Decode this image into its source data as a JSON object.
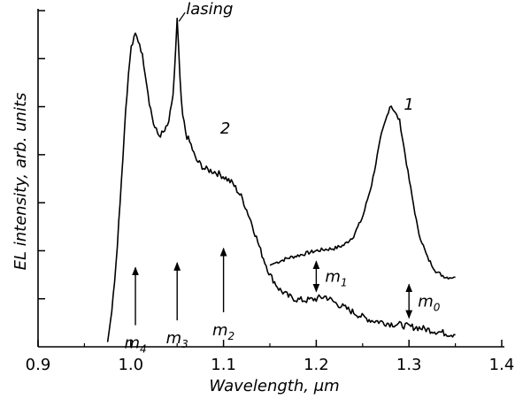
{
  "chart_data": {
    "type": "line",
    "title": "",
    "xlabel": "Wavelength, μm",
    "ylabel": "EL intensity, arb. units",
    "xlim": [
      0.9,
      1.4
    ],
    "ylim": [
      0,
      7
    ],
    "x_ticks": [
      "0.9",
      "1.0",
      "1.1",
      "1.2",
      "1.3",
      "1.4"
    ],
    "y_ticks_labeled": false,
    "grid": false,
    "series": [
      {
        "name": "1",
        "x": [
          1.15,
          1.16,
          1.17,
          1.18,
          1.19,
          1.2,
          1.21,
          1.22,
          1.23,
          1.24,
          1.25,
          1.26,
          1.27,
          1.28,
          1.29,
          1.3,
          1.31,
          1.32,
          1.33,
          1.34,
          1.35
        ],
        "y": [
          1.7,
          1.78,
          1.85,
          1.9,
          1.95,
          2.0,
          2.03,
          2.05,
          2.12,
          2.3,
          2.7,
          3.4,
          4.4,
          5.05,
          4.7,
          3.5,
          2.4,
          1.85,
          1.55,
          1.45,
          1.45
        ],
        "noise": 0.04
      },
      {
        "name": "2",
        "x": [
          0.975,
          0.98,
          0.985,
          0.99,
          0.995,
          1.0,
          1.005,
          1.01,
          1.015,
          1.02,
          1.025,
          1.03,
          1.035,
          1.04,
          1.045,
          1.048,
          1.05,
          1.052,
          1.055,
          1.06,
          1.065,
          1.07,
          1.08,
          1.09,
          1.1,
          1.11,
          1.12,
          1.13,
          1.14,
          1.15,
          1.16,
          1.17,
          1.18,
          1.19,
          1.2,
          1.21,
          1.22,
          1.23,
          1.24,
          1.25,
          1.26,
          1.27,
          1.28,
          1.29,
          1.3,
          1.31,
          1.32,
          1.33,
          1.34,
          1.35
        ],
        "y": [
          0.1,
          0.8,
          2.0,
          3.5,
          5.1,
          6.2,
          6.5,
          6.3,
          5.8,
          5.1,
          4.6,
          4.4,
          4.45,
          4.6,
          5.1,
          6.0,
          6.8,
          6.0,
          4.9,
          4.4,
          4.2,
          3.9,
          3.7,
          3.65,
          3.55,
          3.4,
          3.1,
          2.6,
          2.0,
          1.5,
          1.2,
          1.05,
          0.98,
          0.97,
          1.0,
          1.05,
          0.92,
          0.82,
          0.72,
          0.62,
          0.55,
          0.52,
          0.48,
          0.46,
          0.42,
          0.4,
          0.36,
          0.32,
          0.28,
          0.25
        ],
        "noise": 0.07
      }
    ],
    "annotations": [
      {
        "text": "lasing",
        "x": 1.05,
        "y": 6.85
      },
      {
        "text": "1",
        "x": 1.283,
        "y": 5.05
      },
      {
        "text": "2",
        "x": 1.085,
        "y": 4.55
      }
    ],
    "mode_markers": [
      {
        "label": "m",
        "sub": "4",
        "x": 1.005,
        "y_from": 0.45,
        "y_to": 1.65,
        "kind": "up"
      },
      {
        "label": "m",
        "sub": "3",
        "x": 1.05,
        "y_from": 0.55,
        "y_to": 1.75,
        "kind": "up"
      },
      {
        "label": "m",
        "sub": "2",
        "x": 1.1,
        "y_from": 0.72,
        "y_to": 2.05,
        "kind": "up"
      },
      {
        "label": "m",
        "sub": "1",
        "x": 1.2,
        "y_from": 1.15,
        "y_to": 1.78,
        "kind": "double"
      },
      {
        "label": "m",
        "sub": "0",
        "x": 1.3,
        "y_from": 0.6,
        "y_to": 1.3,
        "kind": "double"
      }
    ]
  }
}
